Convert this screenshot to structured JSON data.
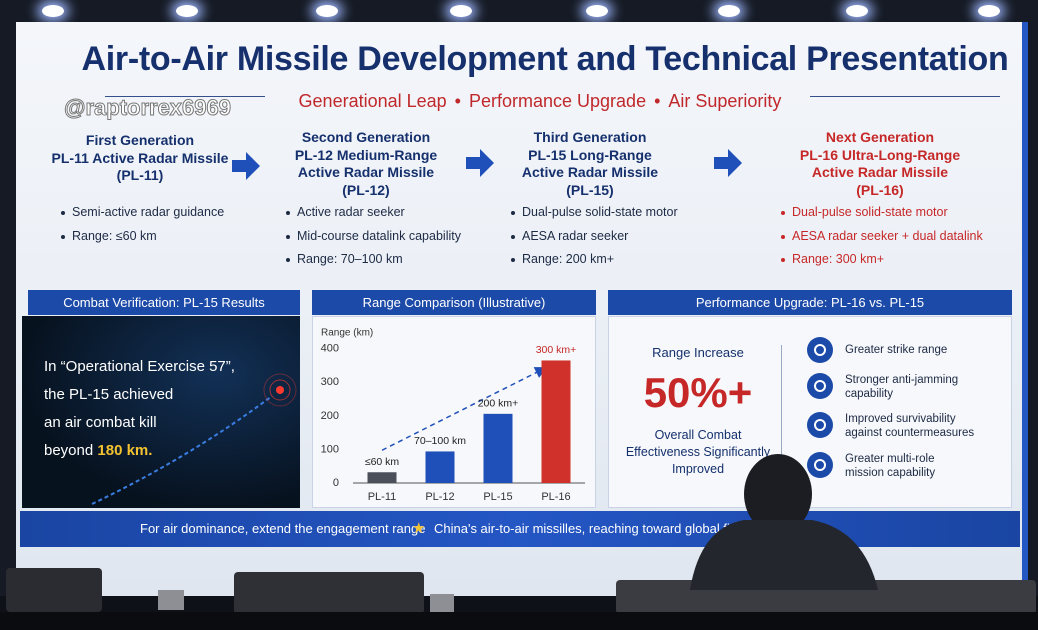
{
  "watermark": "@raptorrex6969",
  "header": {
    "title": "Air-to-Air Missile Development and Technical Presentation",
    "subtitle": [
      "Generational Leap",
      "Performance Upgrade",
      "Air Superiority"
    ]
  },
  "generations": [
    {
      "lines": [
        "First Generation",
        "PL-11 Active Radar Missile",
        "(PL-11)"
      ],
      "bullets": [
        "Semi-active radar guidance",
        "Range:  ≤60 km"
      ]
    },
    {
      "lines": [
        "Second Generation",
        "PL-12 Medium-Range",
        "Active Radar Missile",
        "(PL-12)"
      ],
      "bullets": [
        "Active radar seeker",
        "Mid-course datalink capability",
        "Range: 70–100 km"
      ]
    },
    {
      "lines": [
        "Third Generation",
        "PL-15 Long-Range",
        "Active Radar Missile",
        "(PL-15)"
      ],
      "bullets": [
        "Dual-pulse solid-state motor",
        "AESA radar seeker",
        "Range: 200 km+"
      ]
    },
    {
      "lines": [
        "Next Generation",
        "PL-16 Ultra-Long-Range",
        "Active Radar Missile",
        "(PL-16)"
      ],
      "bullets": [
        "Dual-pulse solid-state motor",
        "AESA radar seeker + dual datalink",
        "Range: 300 km+"
      ]
    }
  ],
  "combat": {
    "title": "Combat Verification:  PL-15 Results",
    "lines": [
      "In “Operational Exercise 57”,",
      "the PL-15 achieved",
      "an air combat kill"
    ],
    "last_line": "beyond",
    "highlight": "180 km."
  },
  "chart_data": {
    "type": "bar",
    "title": "Range Comparison (Illustrative)",
    "y_label": "Range (km)",
    "categories": [
      "PL-11",
      "PL-12",
      "PL-15",
      "PL-16"
    ],
    "values": [
      32,
      94,
      206,
      365
    ],
    "value_labels": [
      "≤60 km",
      "70–100 km",
      "200 km+",
      "300 km+"
    ],
    "colors": [
      "#4a4f59",
      "#1f4fb8",
      "#1f4fb8",
      "#d0322b"
    ],
    "ylim": [
      0,
      420
    ],
    "yticks": [
      0,
      100,
      200,
      300,
      400
    ],
    "grid": false
  },
  "upgrade": {
    "title": "Performance Upgrade:  PL-16 vs.  PL-15",
    "range_label": "Range Increase",
    "big": "50%+",
    "caption": [
      "Overall Combat",
      "Effectiveness Significantly",
      "Improved"
    ],
    "features": [
      [
        "Greater strike range"
      ],
      [
        "Stronger anti-jamming",
        "capability"
      ],
      [
        "Improved survivability",
        "against countermeasures"
      ],
      [
        "Greater multi-role",
        "mission capability"
      ]
    ]
  },
  "footer": {
    "left": "For air dominance, extend the engagement range",
    "right": "China's air-to-air missilles, reaching toward global first-class level"
  }
}
